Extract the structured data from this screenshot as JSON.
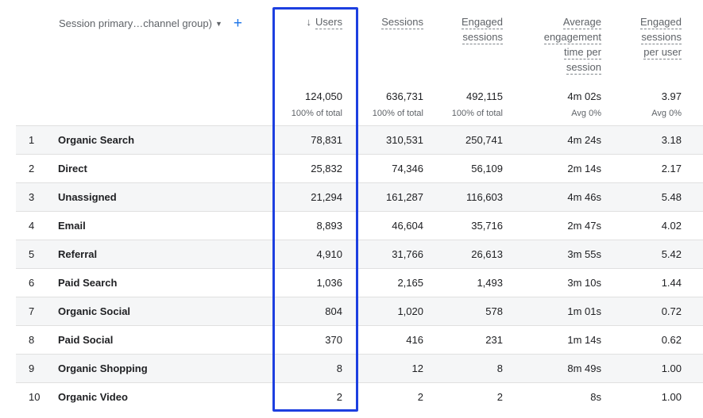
{
  "dimension": {
    "label": "Session primary…channel group)"
  },
  "columns": [
    {
      "key": "users",
      "lines": [
        "Users"
      ],
      "sorted": true,
      "sort_icon": "arrow-down-icon"
    },
    {
      "key": "sessions",
      "lines": [
        "Sessions"
      ]
    },
    {
      "key": "engaged_sessions",
      "lines": [
        "Engaged",
        "sessions"
      ]
    },
    {
      "key": "avg_engagement_time",
      "lines": [
        "Average",
        "engagement",
        "time per",
        "session"
      ]
    },
    {
      "key": "engaged_sessions_per_user",
      "lines": [
        "Engaged",
        "sessions",
        "per user"
      ]
    }
  ],
  "totals": {
    "users": {
      "value": "124,050",
      "sub": "100% of total"
    },
    "sessions": {
      "value": "636,731",
      "sub": "100% of total"
    },
    "engaged_sessions": {
      "value": "492,115",
      "sub": "100% of total"
    },
    "avg_engagement_time": {
      "value": "4m 02s",
      "sub": "Avg 0%"
    },
    "engaged_sessions_per_user": {
      "value": "3.97",
      "sub": "Avg 0%"
    }
  },
  "rows": [
    {
      "index": "1",
      "name": "Organic Search",
      "users": "78,831",
      "sessions": "310,531",
      "engaged_sessions": "250,741",
      "avg_engagement_time": "4m 24s",
      "engaged_sessions_per_user": "3.18"
    },
    {
      "index": "2",
      "name": "Direct",
      "users": "25,832",
      "sessions": "74,346",
      "engaged_sessions": "56,109",
      "avg_engagement_time": "2m 14s",
      "engaged_sessions_per_user": "2.17"
    },
    {
      "index": "3",
      "name": "Unassigned",
      "users": "21,294",
      "sessions": "161,287",
      "engaged_sessions": "116,603",
      "avg_engagement_time": "4m 46s",
      "engaged_sessions_per_user": "5.48"
    },
    {
      "index": "4",
      "name": "Email",
      "users": "8,893",
      "sessions": "46,604",
      "engaged_sessions": "35,716",
      "avg_engagement_time": "2m 47s",
      "engaged_sessions_per_user": "4.02"
    },
    {
      "index": "5",
      "name": "Referral",
      "users": "4,910",
      "sessions": "31,766",
      "engaged_sessions": "26,613",
      "avg_engagement_time": "3m 55s",
      "engaged_sessions_per_user": "5.42"
    },
    {
      "index": "6",
      "name": "Paid Search",
      "users": "1,036",
      "sessions": "2,165",
      "engaged_sessions": "1,493",
      "avg_engagement_time": "3m 10s",
      "engaged_sessions_per_user": "1.44"
    },
    {
      "index": "7",
      "name": "Organic Social",
      "users": "804",
      "sessions": "1,020",
      "engaged_sessions": "578",
      "avg_engagement_time": "1m 01s",
      "engaged_sessions_per_user": "0.72"
    },
    {
      "index": "8",
      "name": "Paid Social",
      "users": "370",
      "sessions": "416",
      "engaged_sessions": "231",
      "avg_engagement_time": "1m 14s",
      "engaged_sessions_per_user": "0.62"
    },
    {
      "index": "9",
      "name": "Organic Shopping",
      "users": "8",
      "sessions": "12",
      "engaged_sessions": "8",
      "avg_engagement_time": "8m 49s",
      "engaged_sessions_per_user": "1.00"
    },
    {
      "index": "10",
      "name": "Organic Video",
      "users": "2",
      "sessions": "2",
      "engaged_sessions": "2",
      "avg_engagement_time": "8s",
      "engaged_sessions_per_user": "1.00"
    }
  ],
  "colors": {
    "highlight": "#1d3fe0",
    "accent": "#1a73e8",
    "shaded_row": "#f5f6f7"
  },
  "icons": {
    "dropdown": "caret-down-icon",
    "add": "plus-icon",
    "sort": "arrow-down-icon"
  }
}
